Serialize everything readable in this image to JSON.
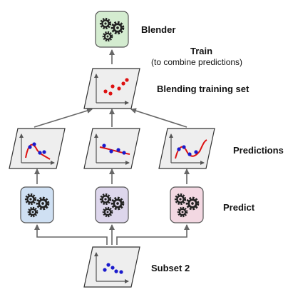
{
  "labels": {
    "blender": "Blender",
    "train": "Train",
    "train_note": "(to combine predictions)",
    "blending_set": "Blending training set",
    "predictions": "Predictions",
    "predict": "Predict",
    "subset": "Subset 2"
  },
  "colors": {
    "blender_box": "#d4ecd0",
    "model_1_box": "#cfe0f3",
    "model_2_box": "#ddd6ec",
    "model_3_box": "#f3d8e2",
    "panel_fill": "#eeeeee",
    "arrow": "#666666",
    "points": "#1a1acc",
    "blend_points": "#dd1111",
    "curve": "#dd1111"
  },
  "icons": {
    "model": "gears-icon"
  }
}
